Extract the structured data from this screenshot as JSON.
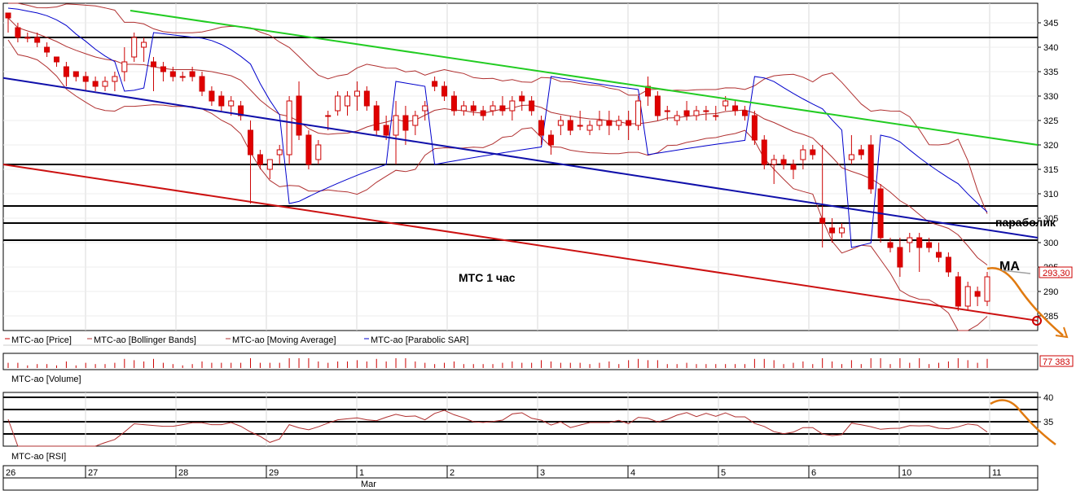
{
  "chart_data": {
    "type": "candlestick",
    "annotations": {
      "title": "МТС   1 час",
      "parabolic": "параболик",
      "ma": "МА"
    },
    "price_panel": {
      "ylim": [
        282,
        349
      ],
      "yticks": [
        "345",
        "340",
        "335",
        "330",
        "325",
        "320",
        "315",
        "310",
        "305",
        "300",
        "295",
        "290",
        "285"
      ],
      "last_price": "293,30",
      "legend": [
        {
          "name": "МТС-ао [Price]",
          "color": "#cc0000"
        },
        {
          "name": "МТС-ао [Bollinger Bands]",
          "color": "#b03030"
        },
        {
          "name": "МТС-ао [Moving Average]",
          "color": "#b03030"
        },
        {
          "name": "МТС-ао [Parabolic SAR]",
          "color": "#0000cc"
        }
      ],
      "horizontal_levels": [
        342,
        316,
        307.5,
        304,
        300.5
      ],
      "trendlines": [
        {
          "name": "green resistance",
          "color": "#22cc22",
          "from": [
            0,
            347.5
          ],
          "to": [
            1,
            320
          ]
        },
        {
          "name": "blue channel",
          "color": "#1010aa",
          "from": [
            0,
            333.7
          ],
          "to": [
            1,
            301
          ]
        },
        {
          "name": "red support",
          "color": "#cc1111",
          "from": [
            0,
            316
          ],
          "to": [
            1,
            284
          ]
        }
      ],
      "candles": [
        [
          347,
          347,
          343,
          346
        ],
        [
          344,
          345,
          341,
          342
        ],
        [
          342,
          343,
          341,
          342
        ],
        [
          342,
          343,
          340,
          341
        ],
        [
          340,
          341,
          338,
          339
        ],
        [
          338,
          338,
          336,
          337
        ],
        [
          336,
          337,
          332,
          334
        ],
        [
          335,
          335,
          333,
          334
        ],
        [
          334,
          335,
          331,
          333
        ],
        [
          333,
          334,
          331,
          332
        ],
        [
          332,
          334,
          331,
          333
        ],
        [
          333,
          335,
          331,
          334
        ],
        [
          335,
          340,
          333,
          337
        ],
        [
          338,
          343,
          337,
          342
        ],
        [
          340,
          342,
          337,
          341
        ],
        [
          337,
          338,
          331,
          336
        ],
        [
          336,
          337,
          333,
          335
        ],
        [
          335,
          336,
          333,
          334
        ],
        [
          334,
          335,
          333,
          334
        ],
        [
          335,
          336,
          333,
          334
        ],
        [
          334,
          335,
          330,
          331
        ],
        [
          331,
          332,
          328,
          329
        ],
        [
          330,
          331,
          327,
          328
        ],
        [
          328,
          330,
          326,
          329
        ],
        [
          328,
          329,
          325,
          326
        ],
        [
          323,
          325,
          308,
          318
        ],
        [
          318,
          319,
          315,
          316
        ],
        [
          315,
          317,
          313,
          317
        ],
        [
          318,
          320,
          316,
          319
        ],
        [
          318,
          330,
          316,
          329
        ],
        [
          330,
          333,
          321,
          322
        ],
        [
          322,
          323,
          315,
          316
        ],
        [
          317,
          321,
          316,
          320
        ],
        [
          326,
          327,
          323,
          326
        ],
        [
          327,
          331,
          326,
          330
        ],
        [
          328,
          331,
          326,
          330
        ],
        [
          330,
          333,
          327,
          331
        ],
        [
          331,
          332,
          327,
          328
        ],
        [
          328,
          329,
          322,
          323
        ],
        [
          324,
          326,
          321,
          322
        ],
        [
          322,
          329,
          316,
          326
        ],
        [
          326,
          328,
          320,
          323
        ],
        [
          324,
          327,
          322,
          326
        ],
        [
          327,
          329,
          325,
          328
        ],
        [
          333,
          334,
          331,
          332
        ],
        [
          332,
          333,
          329,
          330
        ],
        [
          330,
          331,
          326,
          327
        ],
        [
          327,
          329,
          326,
          328
        ],
        [
          328,
          329,
          326,
          327
        ],
        [
          327,
          328,
          325,
          326
        ],
        [
          327,
          329,
          326,
          328
        ],
        [
          328,
          330,
          326,
          327
        ],
        [
          327,
          330,
          325,
          329
        ],
        [
          330,
          331,
          327,
          329
        ],
        [
          329,
          330,
          326,
          327
        ],
        [
          325,
          326,
          320,
          322
        ],
        [
          322,
          323,
          318,
          320
        ],
        [
          324,
          326,
          322,
          325
        ],
        [
          325,
          326,
          322,
          323
        ],
        [
          324,
          327,
          323,
          324
        ],
        [
          323,
          325,
          322,
          324
        ],
        [
          324,
          327,
          323,
          325
        ],
        [
          325,
          327,
          322,
          324
        ],
        [
          324,
          326,
          323,
          325
        ],
        [
          325,
          327,
          321,
          324
        ],
        [
          324,
          330,
          323,
          329
        ],
        [
          332,
          334,
          328,
          330
        ],
        [
          330,
          331,
          325,
          326
        ],
        [
          327,
          328,
          325,
          327
        ],
        [
          325,
          327,
          324,
          326
        ],
        [
          327,
          329,
          325,
          326
        ],
        [
          326,
          328,
          325,
          327
        ],
        [
          327,
          328,
          325,
          327
        ],
        [
          326,
          328,
          325,
          326
        ],
        [
          328,
          330,
          327,
          329
        ],
        [
          328,
          329,
          326,
          327
        ],
        [
          327,
          328,
          325,
          326
        ],
        [
          326,
          327,
          320,
          321
        ],
        [
          321,
          322,
          315,
          316
        ],
        [
          316,
          318,
          312,
          317
        ],
        [
          317,
          318,
          315,
          316
        ],
        [
          316,
          317,
          313,
          315
        ],
        [
          317,
          320,
          315,
          319
        ],
        [
          319,
          320,
          317,
          318
        ],
        [
          305,
          320,
          299,
          304
        ],
        [
          303,
          305,
          300,
          302
        ],
        [
          302,
          304,
          301,
          303
        ],
        [
          317,
          322,
          316,
          318
        ],
        [
          319,
          320,
          317,
          318
        ],
        [
          320,
          322,
          310,
          311
        ],
        [
          311,
          312,
          300,
          301
        ],
        [
          300,
          301,
          298,
          299
        ],
        [
          299,
          301,
          293,
          295
        ],
        [
          300,
          302,
          298,
          301
        ],
        [
          301,
          302,
          294,
          299
        ],
        [
          300,
          301,
          298,
          299
        ],
        [
          298,
          300,
          296,
          297
        ],
        [
          297,
          298,
          293,
          294
        ],
        [
          293,
          294,
          286,
          287
        ],
        [
          287,
          292,
          286,
          291
        ],
        [
          290,
          291,
          287,
          289
        ],
        [
          288,
          294,
          287,
          293
        ]
      ]
    },
    "volume_panel": {
      "legend": "МТС-ао [Volume]",
      "last_value": "77 383"
    },
    "rsi_panel": {
      "legend": "МТС-ао [RSI]",
      "ylim": [
        30,
        41
      ],
      "yticks": [
        "40",
        "35"
      ],
      "levels": [
        40,
        37.5,
        35,
        32.5
      ]
    },
    "x_axis": {
      "days": [
        "26",
        "27",
        "28",
        "29",
        "1",
        "2",
        "3",
        "4",
        "5",
        "6",
        "10",
        "11"
      ],
      "month": "Mar"
    }
  }
}
